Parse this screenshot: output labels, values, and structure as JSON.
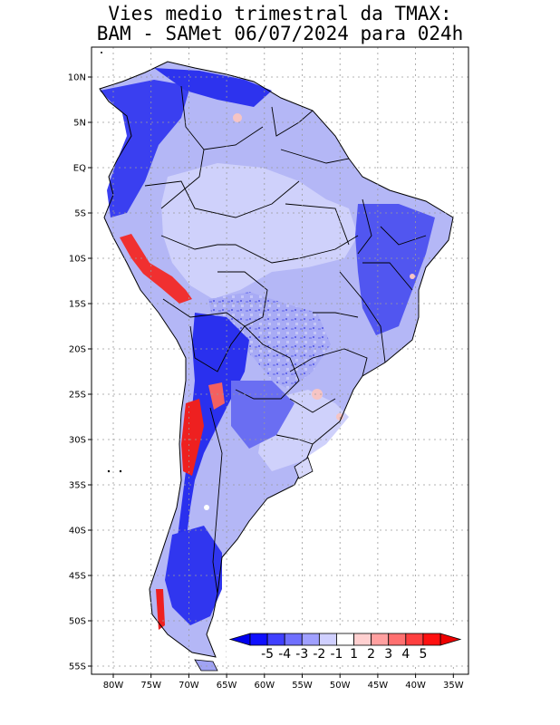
{
  "title": {
    "line1": "Vies medio trimestral da TMAX:",
    "line2": "BAM - SAMet 06/07/2024  para 024h"
  },
  "map": {
    "region": "South America",
    "ocean_color": "#ffffff",
    "grid_lines": "dotted",
    "lat_labels": [
      "10N",
      "5N",
      "EQ",
      "5S",
      "10S",
      "15S",
      "20S",
      "25S",
      "30S",
      "35S",
      "40S",
      "45S",
      "50S",
      "55S"
    ],
    "lon_labels": [
      "80W",
      "75W",
      "70W",
      "65W",
      "60W",
      "55W",
      "50W",
      "45W",
      "40W",
      "35W"
    ]
  },
  "colorbar": {
    "labels": [
      "-5",
      "-4",
      "-3",
      "-2",
      "-1",
      "1",
      "2",
      "3",
      "4",
      "5"
    ],
    "colors": [
      "#1010ff",
      "#4040ff",
      "#7070ff",
      "#a0a0ff",
      "#d0d0ff",
      "#ffffff",
      "#ffd0d0",
      "#ffa0a0",
      "#ff7070",
      "#ff4040",
      "#ff1010"
    ],
    "low_arrow_color": "#0000ee",
    "high_arrow_color": "#ee0000"
  }
}
